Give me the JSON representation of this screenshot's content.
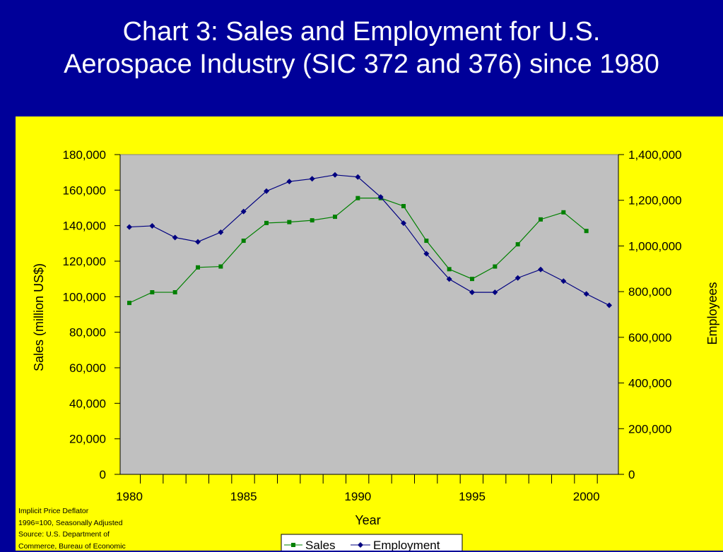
{
  "title_lines": [
    "Chart 3:  Sales and Employment for U.S.",
    "Aerospace Industry (SIC 372 and 376) since 1980"
  ],
  "chart_data": {
    "type": "line",
    "title": "Chart 3:  Sales and Employment for U.S. Aerospace Industry (SIC 372 and 376) since 1980",
    "xlabel": "Year",
    "ylabel": "Sales (million US$)",
    "y2label": "Employees",
    "xlim": [
      1980,
      2001
    ],
    "x_ticks": [
      1980,
      1985,
      1990,
      1995,
      2000
    ],
    "ylim": [
      0,
      180000
    ],
    "y_ticks": [
      "0",
      "20,000",
      "40,000",
      "60,000",
      "80,000",
      "100,000",
      "120,000",
      "140,000",
      "160,000",
      "180,000"
    ],
    "y2lim": [
      0,
      1400000
    ],
    "y2_ticks": [
      "0",
      "200,000",
      "400,000",
      "600,000",
      "800,000",
      "1,000,000",
      "1,200,000",
      "1,400,000"
    ],
    "grid": false,
    "legend_position": "bottom-center",
    "series": [
      {
        "name": "Sales",
        "axis": "left",
        "color": "#008000",
        "marker": "square",
        "x": [
          1980,
          1981,
          1982,
          1983,
          1984,
          1985,
          1986,
          1987,
          1988,
          1989,
          1990,
          1991,
          1992,
          1993,
          1994,
          1995,
          1996,
          1997,
          1998,
          1999,
          2000
        ],
        "values": [
          96500,
          102500,
          102500,
          116500,
          117000,
          131500,
          141500,
          142000,
          143000,
          145000,
          155500,
          155500,
          151000,
          131500,
          115500,
          110000,
          117000,
          129500,
          143500,
          147500,
          137000
        ]
      },
      {
        "name": "Employment",
        "axis": "right",
        "color": "#000080",
        "marker": "diamond",
        "x": [
          1980,
          1981,
          1982,
          1983,
          1984,
          1985,
          1986,
          1987,
          1988,
          1989,
          1990,
          1991,
          1992,
          1993,
          1994,
          1995,
          1996,
          1997,
          1998,
          1999,
          2000,
          2001
        ],
        "values": [
          1083000,
          1088000,
          1037000,
          1018000,
          1060000,
          1151000,
          1240000,
          1282000,
          1294000,
          1311000,
          1302000,
          1214000,
          1100000,
          966000,
          855000,
          797000,
          797000,
          860000,
          897000,
          846000,
          790000,
          740000
        ]
      }
    ]
  },
  "footnote_lines": [
    "Implicit Price Deflator",
    "1996=100, Seasonally Adjusted",
    "Source: U.S. Department of",
    "Commerce, Bureau of Economic"
  ]
}
